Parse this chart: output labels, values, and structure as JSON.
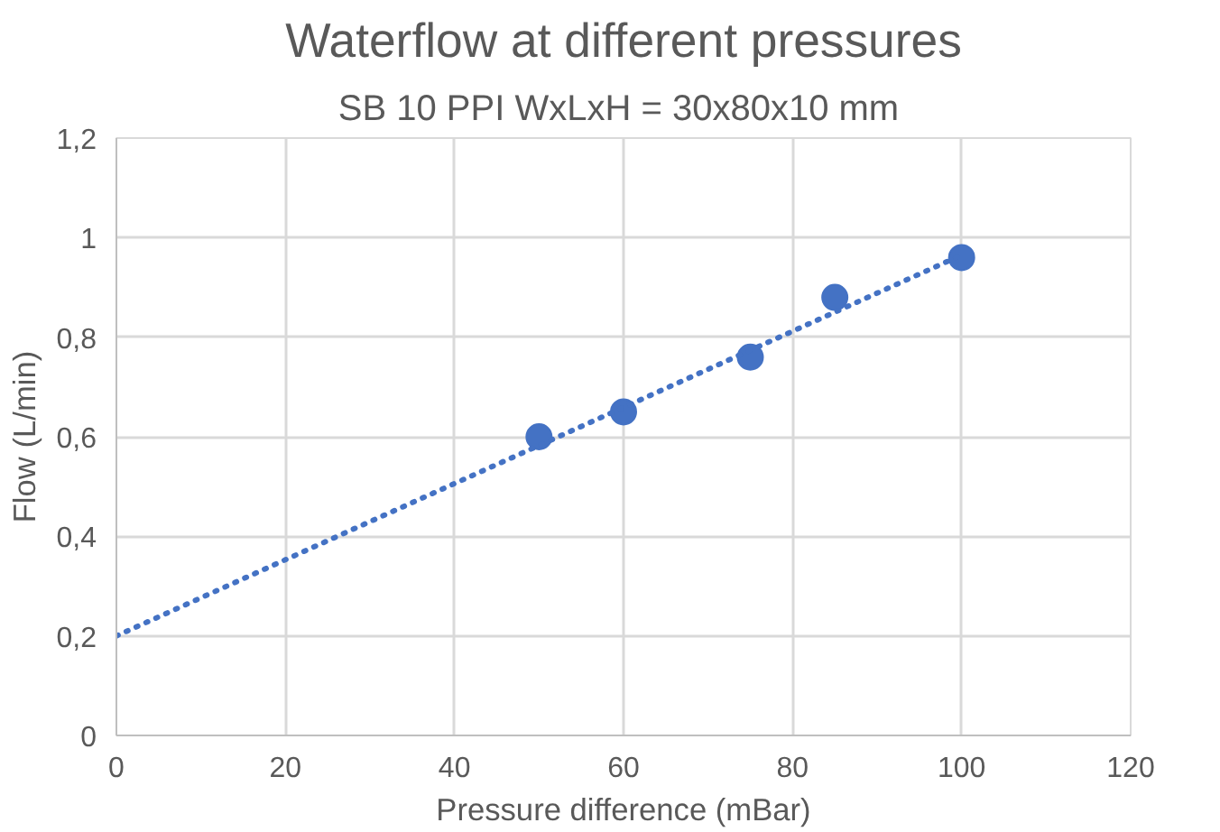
{
  "chart_data": {
    "type": "scatter",
    "title": "Waterflow at different pressures",
    "subtitle": "SB 10 PPI  WxLxH = 30x80x10 mm",
    "xlabel": "Pressure difference (mBar)",
    "ylabel": "Flow (L/min)",
    "x": [
      50,
      60,
      75,
      85,
      100
    ],
    "series": [
      {
        "color": "#4472c4",
        "values": [
          0.6,
          0.65,
          0.76,
          0.88,
          0.96
        ],
        "marker": "circle"
      },
      {
        "type": "line",
        "color": "#4472c4",
        "x": [
          0,
          100
        ],
        "values": [
          0.2,
          0.965
        ],
        "line_style": "dotted",
        "marker": "none"
      }
    ],
    "xlim": [
      0,
      120
    ],
    "xticks": [
      0,
      20,
      40,
      60,
      80,
      100,
      120
    ],
    "ylim": [
      0,
      1.2
    ],
    "yticks": [
      0,
      {
        "value": 0.2,
        "label": "0,2"
      },
      {
        "value": 0.4,
        "label": "0,4"
      },
      {
        "value": 0.6,
        "label": "0,6"
      },
      {
        "value": 0.8,
        "label": "0,8"
      },
      1,
      {
        "value": 1.2,
        "label": "1,2"
      }
    ],
    "grid": true
  }
}
